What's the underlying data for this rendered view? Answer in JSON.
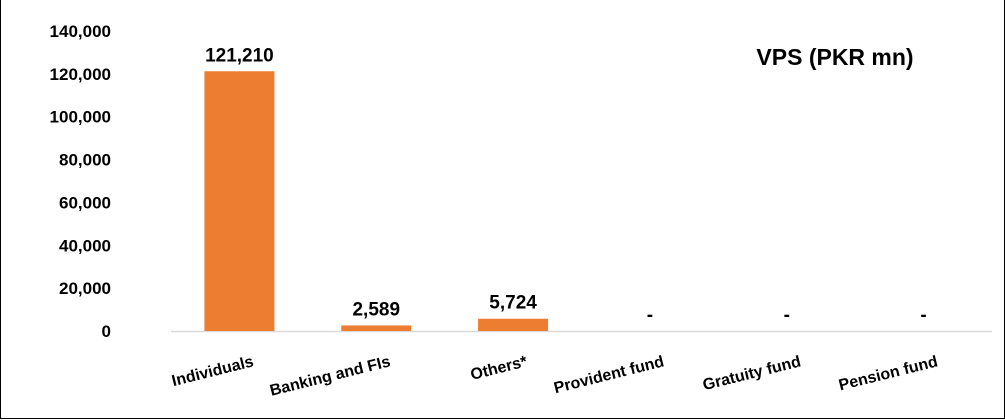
{
  "chart_data": {
    "type": "bar",
    "title": "VPS (PKR mn)",
    "categories": [
      "Individuals",
      "Banking and FIs",
      "Others*",
      "Provident fund",
      "Gratuity fund",
      "Pension fund"
    ],
    "values": [
      121210,
      2589,
      5724,
      0,
      0,
      0
    ],
    "data_labels": [
      "121,210",
      "2,589",
      "5,724",
      "-",
      "-",
      "-"
    ],
    "y_ticks": [
      "0",
      "20,000",
      "40,000",
      "60,000",
      "80,000",
      "100,000",
      "120,000",
      "140,000"
    ],
    "ylim": [
      0,
      140000
    ],
    "xlabel": "",
    "ylabel": "",
    "grid": false,
    "legend": "none",
    "bar_color": "#ED7D31",
    "axis_color": "#D9D9D9"
  }
}
